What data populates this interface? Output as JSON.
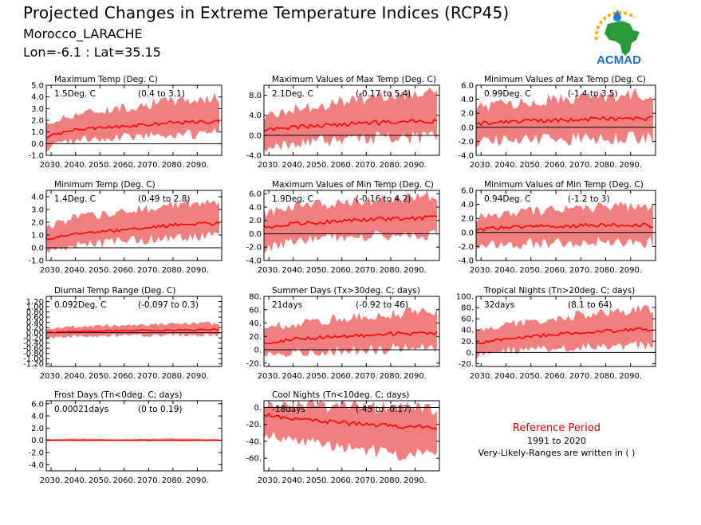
{
  "header": {
    "title": "Projected Changes in Extreme Temperature Indices (RCP45)",
    "location": "Morocco_LARACHE",
    "coords": "Lon=-6.1 : Lat=35.15"
  },
  "logo": {
    "text": "ACMAD"
  },
  "reference": {
    "title": "Reference Period",
    "years": "1991 to 2020",
    "note": "Very-Likely-Ranges are written in ( )"
  },
  "colors": {
    "band": "#f08080",
    "line": "#ff0000",
    "zero": "#000000"
  },
  "chart_data": [
    {
      "type": "line",
      "title": "Maximum Temp (Deg. C)",
      "stat": "1.5Deg. C",
      "range": "(0.4 to 3.1)",
      "ylim": [
        -1.0,
        5.0
      ],
      "yticks": [
        -1.0,
        0.0,
        1.0,
        2.0,
        3.0,
        4.0,
        5.0
      ],
      "ytick_labels": [
        "-1.0",
        "0.0",
        "1.0",
        "2.0",
        "3.0",
        "4.0",
        "5.0"
      ],
      "xlim": [
        2028,
        2100
      ],
      "xticks": [
        2030,
        2040,
        2050,
        2060,
        2070,
        2080,
        2090
      ],
      "xtick_labels": [
        "2030.",
        "2040.",
        "2050.",
        "2060.",
        "2070.",
        "2080.",
        "2090."
      ],
      "anchors_x": [
        2028,
        2040,
        2060,
        2080,
        2100
      ],
      "median": [
        0.6,
        1.2,
        1.5,
        1.8,
        1.9
      ],
      "band_low": [
        -0.3,
        0.4,
        0.7,
        0.9,
        1.0
      ],
      "band_high": [
        1.6,
        2.5,
        3.0,
        3.6,
        3.8
      ]
    },
    {
      "type": "line",
      "title": "Maximum Values of Max Temp (Deg. C)",
      "stat": "2.1Deg. C",
      "range": "(-0.17 to 5.4)",
      "ylim": [
        -4.0,
        10.0
      ],
      "yticks": [
        -4.0,
        0.0,
        4.0,
        8.0
      ],
      "ytick_labels": [
        "-4.0",
        "0.0",
        "4.0",
        "8.0"
      ],
      "xlim": [
        2028,
        2100
      ],
      "xticks": [
        2030,
        2040,
        2050,
        2060,
        2070,
        2080,
        2090
      ],
      "xtick_labels": [
        "2030.",
        "2040.",
        "2050.",
        "2060.",
        "2070.",
        "2080.",
        "2090."
      ],
      "anchors_x": [
        2028,
        2040,
        2060,
        2080,
        2100
      ],
      "median": [
        1.0,
        1.6,
        2.2,
        2.6,
        2.8
      ],
      "band_low": [
        -2.5,
        -1.3,
        -0.6,
        -0.3,
        -0.2
      ],
      "band_high": [
        3.5,
        5.0,
        6.5,
        7.8,
        8.5
      ]
    },
    {
      "type": "line",
      "title": "Minimum Values of Max Temp (Deg. C)",
      "stat": "0.99Deg. C",
      "range": "(-1.4 to 3.5)",
      "ylim": [
        -4.0,
        6.0
      ],
      "yticks": [
        -4.0,
        -2.0,
        0.0,
        2.0,
        4.0,
        6.0
      ],
      "ytick_labels": [
        "-4.0",
        "-2.0",
        "0.0",
        "2.0",
        "4.0",
        "6.0"
      ],
      "xlim": [
        2028,
        2100
      ],
      "xticks": [
        2030,
        2040,
        2050,
        2060,
        2070,
        2080,
        2090
      ],
      "xtick_labels": [
        "2030.",
        "2040.",
        "2050.",
        "2060.",
        "2070.",
        "2080.",
        "2090."
      ],
      "anchors_x": [
        2028,
        2040,
        2060,
        2080,
        2100
      ],
      "median": [
        0.5,
        0.8,
        1.0,
        1.3,
        1.2
      ],
      "band_low": [
        -2.0,
        -1.7,
        -1.5,
        -1.3,
        -1.4
      ],
      "band_high": [
        2.5,
        3.2,
        3.8,
        4.3,
        4.5
      ]
    },
    {
      "type": "line",
      "title": "Minimum Temp (Deg. C)",
      "stat": "1.4Deg. C",
      "range": "(0.49 to 2.8)",
      "ylim": [
        -1.0,
        4.5
      ],
      "yticks": [
        -1.0,
        0.0,
        1.0,
        2.0,
        3.0,
        4.0
      ],
      "ytick_labels": [
        "-1.0",
        "0.0",
        "1.0",
        "2.0",
        "3.0",
        "4.0"
      ],
      "xlim": [
        2028,
        2100
      ],
      "xticks": [
        2030,
        2040,
        2050,
        2060,
        2070,
        2080,
        2090
      ],
      "xtick_labels": [
        "2030.",
        "2040.",
        "2050.",
        "2060.",
        "2070.",
        "2080.",
        "2090."
      ],
      "anchors_x": [
        2028,
        2040,
        2060,
        2080,
        2100
      ],
      "median": [
        0.7,
        1.1,
        1.4,
        1.8,
        1.9
      ],
      "band_low": [
        -0.2,
        0.3,
        0.6,
        0.9,
        1.0
      ],
      "band_high": [
        1.5,
        2.3,
        2.8,
        3.3,
        3.4
      ]
    },
    {
      "type": "line",
      "title": "Maximum Values of Min Temp (Deg. C)",
      "stat": "1.9Deg. C",
      "range": "(-0.16 to 4.2)",
      "ylim": [
        -4.0,
        6.5
      ],
      "yticks": [
        -4.0,
        -2.0,
        0.0,
        2.0,
        4.0,
        6.0
      ],
      "ytick_labels": [
        "-4.0",
        "-2.0",
        "0.0",
        "2.0",
        "4.0",
        "6.0"
      ],
      "xlim": [
        2028,
        2100
      ],
      "xticks": [
        2030,
        2040,
        2050,
        2060,
        2070,
        2080,
        2090
      ],
      "xtick_labels": [
        "2030.",
        "2040.",
        "2050.",
        "2060.",
        "2070.",
        "2080.",
        "2090."
      ],
      "anchors_x": [
        2028,
        2040,
        2060,
        2080,
        2100
      ],
      "median": [
        1.0,
        1.5,
        1.9,
        2.3,
        2.4
      ],
      "band_low": [
        -2.0,
        -1.0,
        -0.3,
        -0.1,
        0.0
      ],
      "band_high": [
        3.0,
        3.8,
        4.5,
        5.2,
        5.5
      ]
    },
    {
      "type": "line",
      "title": "Minimum Values of Min Temp (Deg. C)",
      "stat": "0.94Deg. C",
      "range": "(-1.2 to 3)",
      "ylim": [
        -4.0,
        6.0
      ],
      "yticks": [
        -4.0,
        -2.0,
        0.0,
        2.0,
        4.0,
        6.0
      ],
      "ytick_labels": [
        "-4.0",
        "-2.0",
        "0.0",
        "2.0",
        "4.0",
        "6.0"
      ],
      "xlim": [
        2028,
        2100
      ],
      "xticks": [
        2030,
        2040,
        2050,
        2060,
        2070,
        2080,
        2090
      ],
      "xtick_labels": [
        "2030.",
        "2040.",
        "2050.",
        "2060.",
        "2070.",
        "2080.",
        "2090."
      ],
      "anchors_x": [
        2028,
        2040,
        2060,
        2080,
        2100
      ],
      "median": [
        0.4,
        0.7,
        0.9,
        1.1,
        1.0
      ],
      "band_low": [
        -2.0,
        -1.6,
        -1.3,
        -1.2,
        -1.4
      ],
      "band_high": [
        2.0,
        2.7,
        3.1,
        3.5,
        3.8
      ]
    },
    {
      "type": "line",
      "title": "Diurnal Temp Range (Deg. C)",
      "stat": "0.092Deg. C",
      "range": "(-0.097 to 0.3)",
      "ylim": [
        -1.3,
        1.4
      ],
      "yticks": [
        -1.2,
        -1.0,
        -0.8,
        -0.6,
        -0.4,
        -0.2,
        0.0,
        0.2,
        0.4,
        0.6,
        0.8,
        1.0,
        1.2
      ],
      "ytick_labels": [
        "-1.20",
        "-1.00",
        "-0.80",
        "-0.60",
        "-0.40",
        "-0.20",
        "0.00",
        "0.20",
        "0.40",
        "0.60",
        "0.80",
        "1.00",
        "1.20"
      ],
      "xlim": [
        2028,
        2100
      ],
      "xticks": [
        2030,
        2040,
        2050,
        2060,
        2070,
        2080,
        2090
      ],
      "xtick_labels": [
        "2030.",
        "2040.",
        "2050.",
        "2060.",
        "2070.",
        "2080.",
        "2090."
      ],
      "anchors_x": [
        2028,
        2040,
        2060,
        2080,
        2100
      ],
      "median": [
        0.0,
        0.05,
        0.08,
        0.1,
        0.12
      ],
      "band_low": [
        -0.2,
        -0.12,
        -0.1,
        -0.08,
        -0.08
      ],
      "band_high": [
        0.15,
        0.22,
        0.28,
        0.32,
        0.35
      ]
    },
    {
      "type": "line",
      "title": "Summer Days (Tx>30deg. C; days)",
      "stat": "21days",
      "range": "(-0.92 to 46)",
      "ylim": [
        -25,
        80
      ],
      "yticks": [
        -20,
        0,
        20,
        40,
        60,
        80
      ],
      "ytick_labels": [
        "-20.",
        "0.",
        "20.",
        "40.",
        "60.",
        "80."
      ],
      "xlim": [
        2028,
        2100
      ],
      "xticks": [
        2030,
        2040,
        2050,
        2060,
        2070,
        2080,
        2090
      ],
      "xtick_labels": [
        "2030.",
        "2040.",
        "2050.",
        "2060.",
        "2070.",
        "2080.",
        "2090."
      ],
      "anchors_x": [
        2028,
        2040,
        2060,
        2080,
        2100
      ],
      "median": [
        10,
        16,
        20,
        24,
        25
      ],
      "band_low": [
        -8,
        -3,
        0,
        3,
        4
      ],
      "band_high": [
        30,
        38,
        45,
        52,
        56
      ]
    },
    {
      "type": "line",
      "title": "Tropical Nights (Tn>20deg. C; days)",
      "stat": "32days",
      "range": "(8.1 to 64)",
      "ylim": [
        -25,
        100
      ],
      "yticks": [
        -20,
        0,
        20,
        40,
        60,
        80,
        100
      ],
      "ytick_labels": [
        "-20.",
        "0.",
        "20.",
        "40.",
        "60.",
        "80.",
        "100."
      ],
      "xlim": [
        2028,
        2100
      ],
      "xticks": [
        2030,
        2040,
        2050,
        2060,
        2070,
        2080,
        2090
      ],
      "xtick_labels": [
        "2030.",
        "2040.",
        "2050.",
        "2060.",
        "2070.",
        "2080.",
        "2090."
      ],
      "anchors_x": [
        2028,
        2040,
        2060,
        2080,
        2100
      ],
      "median": [
        15,
        25,
        32,
        38,
        42
      ],
      "band_low": [
        -5,
        5,
        10,
        14,
        16
      ],
      "band_high": [
        35,
        48,
        60,
        70,
        75
      ]
    },
    {
      "type": "line",
      "title": "Frost Days (Tn<0deg. C; days)",
      "stat": "0.00021days",
      "range": "(0 to 0.19)",
      "ylim": [
        -5.0,
        6.5
      ],
      "yticks": [
        -4.0,
        -2.0,
        0.0,
        2.0,
        4.0,
        6.0
      ],
      "ytick_labels": [
        "-4.0",
        "-2.0",
        "0.0",
        "2.0",
        "4.0",
        "6.0"
      ],
      "xlim": [
        2028,
        2100
      ],
      "xticks": [
        2030,
        2040,
        2050,
        2060,
        2070,
        2080,
        2090
      ],
      "xtick_labels": [
        "2030.",
        "2040.",
        "2050.",
        "2060.",
        "2070.",
        "2080.",
        "2090."
      ],
      "anchors_x": [
        2028,
        2040,
        2060,
        2080,
        2100
      ],
      "median": [
        0.0,
        0.0,
        0.0,
        0.0,
        0.0
      ],
      "band_low": [
        0.0,
        0.0,
        0.0,
        0.0,
        0.0
      ],
      "band_high": [
        0.2,
        0.25,
        0.2,
        0.3,
        0.2
      ]
    },
    {
      "type": "line",
      "title": "Cool Nights (Tn<10deg. C; days)",
      "stat": "-18days",
      "range": "(-45 to -0.17)",
      "ylim": [
        -75,
        8
      ],
      "yticks": [
        -60,
        -40,
        -20,
        0
      ],
      "ytick_labels": [
        "-60.",
        "-40.",
        "-20.",
        "0."
      ],
      "xlim": [
        2028,
        2100
      ],
      "xticks": [
        2030,
        2040,
        2050,
        2060,
        2070,
        2080,
        2090
      ],
      "xtick_labels": [
        "2030.",
        "2040.",
        "2050.",
        "2060.",
        "2070.",
        "2080.",
        "2090."
      ],
      "anchors_x": [
        2028,
        2040,
        2060,
        2080,
        2100
      ],
      "median": [
        -8,
        -14,
        -18,
        -22,
        -23
      ],
      "band_low": [
        -30,
        -38,
        -45,
        -52,
        -55
      ],
      "band_high": [
        4,
        2,
        0,
        -2,
        -3
      ]
    }
  ]
}
